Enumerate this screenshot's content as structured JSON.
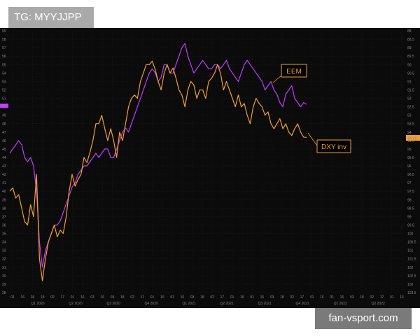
{
  "watermarks": {
    "top": "TG: MYYJJPP",
    "bottom": "fan-vsport.com"
  },
  "chart_data": {
    "type": "line",
    "title": "",
    "left_axis_ticks": [
      "59",
      "58",
      "57",
      "56",
      "55",
      "54",
      "53",
      "52",
      "51",
      "50",
      "49",
      "48",
      "47",
      "46",
      "45",
      "44",
      "43",
      "42",
      "41",
      "40",
      "39",
      "38",
      "37",
      "36",
      "35",
      "34",
      "33",
      "32",
      "31",
      "30",
      "29",
      "28"
    ],
    "right_axis_ticks": [
      "88",
      "88.5",
      "89",
      "89.5",
      "90",
      "90.5",
      "91",
      "91.5",
      "92",
      "92.5",
      "93",
      "93.5",
      "94",
      "94.5",
      "95",
      "95.5",
      "96",
      "96.5",
      "97",
      "97.5",
      "98",
      "98.5",
      "99",
      "99.5",
      "100",
      "100.5",
      "101",
      "101.5",
      "102",
      "102.5",
      "103",
      "103.5"
    ],
    "x_tick_labels": [
      "01",
      "16",
      "03",
      "18",
      "02",
      "17",
      "01",
      "16",
      "01",
      "16",
      "03",
      "18",
      "02",
      "17",
      "01",
      "16",
      "01",
      "16",
      "03",
      "18",
      "02",
      "17",
      "01",
      "16",
      "01",
      "16",
      "03",
      "18",
      "02",
      "17",
      "01",
      "16",
      "01",
      "16",
      "03",
      "18",
      "02",
      "17",
      "01",
      "16"
    ],
    "quarter_labels": [
      "Q1 2020",
      "Q2 2020",
      "Q3 2020",
      "Q4 2020",
      "Q1 2021",
      "Q2 2021",
      "Q3 2021",
      "Q4 2021",
      "Q1 2022",
      "Q2 2022"
    ],
    "right_last_value": "94.311",
    "left_current_value": "50.",
    "series": [
      {
        "name": "EEM",
        "color": "#c03cff",
        "x": [
          0,
          0.01,
          0.02,
          0.03,
          0.04,
          0.05,
          0.06,
          0.07,
          0.08,
          0.09,
          0.1,
          0.11,
          0.12,
          0.13,
          0.14,
          0.15,
          0.16,
          0.17,
          0.18,
          0.19,
          0.2,
          0.21,
          0.22,
          0.23,
          0.24,
          0.25,
          0.26,
          0.27,
          0.28,
          0.29,
          0.3,
          0.31,
          0.32,
          0.33,
          0.34,
          0.35,
          0.36,
          0.37,
          0.38,
          0.39,
          0.4,
          0.41,
          0.42,
          0.43,
          0.44,
          0.45,
          0.46,
          0.47,
          0.48,
          0.49,
          0.5,
          0.51,
          0.52,
          0.53,
          0.54,
          0.55,
          0.56,
          0.57,
          0.58,
          0.59,
          0.6,
          0.61,
          0.62,
          0.63,
          0.64,
          0.65,
          0.66,
          0.67,
          0.68,
          0.69,
          0.7,
          0.71,
          0.72,
          0.73,
          0.74,
          0.75,
          0.76,
          0.77,
          0.78,
          0.79,
          0.8,
          0.81,
          0.82,
          0.83,
          0.84,
          0.85,
          0.86,
          0.87,
          0.88,
          0.89,
          0.9,
          0.91,
          0.92,
          0.93,
          0.94,
          0.95,
          0.96,
          0.97,
          0.98,
          0.99,
          1.0
        ],
        "values": [
          44.5,
          45,
          45.5,
          46,
          45.5,
          44,
          43.5,
          44,
          43,
          40,
          34,
          31,
          33,
          34,
          35,
          36,
          36,
          36.5,
          37.5,
          38.5,
          39.5,
          40.5,
          41,
          42,
          42.5,
          43,
          43,
          43.5,
          44,
          44.5,
          44,
          44.5,
          45,
          45,
          44,
          44,
          45,
          46,
          47,
          47.5,
          47,
          48,
          49,
          50,
          51,
          52,
          53,
          54,
          54.5,
          54,
          53,
          53.5,
          55,
          55,
          54,
          54,
          55,
          56,
          57,
          57.5,
          56,
          55,
          54,
          54.5,
          55,
          55.5,
          55,
          54.5,
          54.5,
          55,
          55,
          54.5,
          55,
          55.5,
          54.5,
          54,
          53.5,
          53,
          54,
          55,
          55.5,
          55,
          54.5,
          54,
          53.5,
          53,
          52,
          52.5,
          53,
          52,
          51.5,
          50.5,
          50,
          51.5,
          52,
          52.5,
          51,
          50.5,
          50,
          50.5,
          50.3
        ]
      },
      {
        "name": "DXY inv",
        "color": "#f0a030",
        "x": [
          0,
          0.01,
          0.02,
          0.03,
          0.04,
          0.05,
          0.06,
          0.07,
          0.08,
          0.09,
          0.1,
          0.11,
          0.12,
          0.13,
          0.14,
          0.15,
          0.16,
          0.17,
          0.18,
          0.19,
          0.2,
          0.21,
          0.22,
          0.23,
          0.24,
          0.25,
          0.26,
          0.27,
          0.28,
          0.29,
          0.3,
          0.31,
          0.32,
          0.33,
          0.34,
          0.35,
          0.36,
          0.37,
          0.38,
          0.39,
          0.4,
          0.41,
          0.42,
          0.43,
          0.44,
          0.45,
          0.46,
          0.47,
          0.48,
          0.49,
          0.5,
          0.51,
          0.52,
          0.53,
          0.54,
          0.55,
          0.56,
          0.57,
          0.58,
          0.59,
          0.6,
          0.61,
          0.62,
          0.63,
          0.64,
          0.65,
          0.66,
          0.67,
          0.68,
          0.69,
          0.7,
          0.71,
          0.72,
          0.73,
          0.74,
          0.75,
          0.76,
          0.77,
          0.78,
          0.79,
          0.8,
          0.81,
          0.82,
          0.83,
          0.84,
          0.85,
          0.86,
          0.87,
          0.88,
          0.89,
          0.9,
          0.91,
          0.92,
          0.93,
          0.94,
          0.95,
          0.96,
          0.97,
          0.98,
          0.99,
          1.0
        ],
        "values": [
          97.5,
          97.3,
          97.9,
          97.7,
          98.5,
          99.3,
          99.5,
          98.3,
          99.0,
          96.5,
          101.5,
          102.8,
          101.5,
          100.5,
          100.0,
          99.5,
          100.2,
          99.8,
          100.0,
          99.0,
          97.5,
          96.5,
          97.2,
          96.8,
          96.5,
          95.5,
          95.8,
          95.2,
          94.5,
          93.5,
          93.5,
          93.0,
          93.8,
          94.5,
          93.8,
          94.5,
          95.5,
          94.0,
          94.5,
          93.5,
          92.5,
          92.0,
          91.8,
          92.0,
          91.0,
          90.5,
          90.0,
          90.0,
          89.8,
          90.3,
          91.0,
          91.5,
          90.5,
          90.0,
          90.5,
          90.2,
          90.8,
          91.5,
          91.8,
          92.5,
          91.5,
          91.0,
          91.2,
          92.0,
          91.5,
          91.5,
          92.0,
          91.0,
          90.8,
          90.5,
          90.0,
          90.5,
          91.5,
          91.0,
          91.5,
          92.0,
          92.5,
          91.8,
          92.5,
          92.3,
          93.0,
          93.5,
          92.5,
          92.0,
          92.3,
          92.5,
          93.0,
          92.8,
          93.5,
          93.8,
          93.5,
          93.2,
          93.8,
          93.5,
          94.0,
          94.2,
          93.8,
          93.5,
          94.0,
          94.3,
          94.311
        ]
      }
    ],
    "left_range": [
      28,
      59
    ],
    "right_range": [
      103.5,
      88
    ]
  }
}
